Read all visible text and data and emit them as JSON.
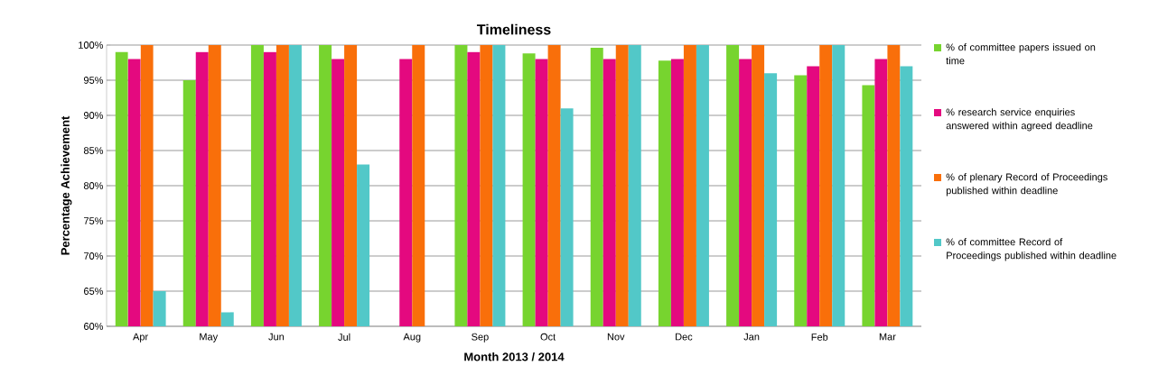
{
  "chart_data": {
    "type": "bar",
    "title": "Timeliness",
    "xlabel": "Month 2013 / 2014",
    "ylabel": "Percentage Achievement",
    "categories": [
      "Apr",
      "May",
      "Jun",
      "Jul",
      "Aug",
      "Sep",
      "Oct",
      "Nov",
      "Dec",
      "Jan",
      "Feb",
      "Mar"
    ],
    "series": [
      {
        "name": "% of committee papers issued on time",
        "color": "#77d42f",
        "values": [
          99,
          95,
          100,
          100,
          60,
          100,
          98.8,
          99.6,
          97.8,
          100,
          95.7,
          94.3
        ]
      },
      {
        "name": "% research service enquiries answered within agreed deadline",
        "color": "#e4097f",
        "values": [
          98,
          99,
          99,
          98,
          98,
          99,
          98,
          98,
          98,
          98,
          97,
          98
        ]
      },
      {
        "name": "% of plenary Record of Proceedings published within deadline",
        "color": "#f96f0a",
        "values": [
          100,
          100,
          100,
          100,
          100,
          100,
          100,
          100,
          100,
          100,
          100,
          100
        ]
      },
      {
        "name": "% of committee Record of Proceedings published within deadline",
        "color": "#52c8c8",
        "values": [
          65,
          62,
          100,
          83,
          60,
          100,
          91,
          100,
          100,
          96,
          100,
          97
        ]
      }
    ],
    "ylim": [
      60,
      100
    ],
    "yticks": [
      {
        "value": 60,
        "label": "60%"
      },
      {
        "value": 65,
        "label": "65%"
      },
      {
        "value": 70,
        "label": "70%"
      },
      {
        "value": 75,
        "label": "75%"
      },
      {
        "value": 80,
        "label": "80%"
      },
      {
        "value": 85,
        "label": "85%"
      },
      {
        "value": 90,
        "label": "90%"
      },
      {
        "value": 95,
        "label": "95%"
      },
      {
        "value": 100,
        "label": "100%"
      }
    ],
    "grid": "y",
    "legend": "right"
  }
}
